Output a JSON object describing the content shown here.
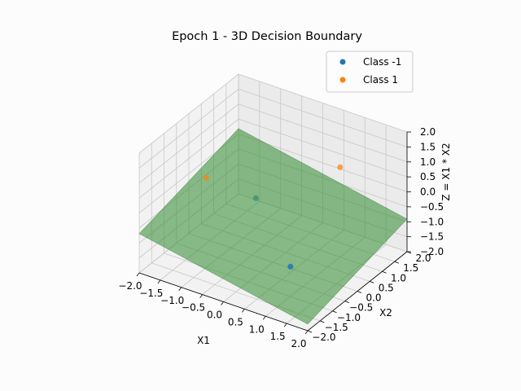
{
  "chart_data": {
    "type": "scatter",
    "title": "Epoch 1 - 3D Decision Boundary",
    "xlabel": "X1",
    "ylabel": "X2",
    "zlabel": "Z = X1 * X2",
    "xlim": [
      -2.0,
      2.0
    ],
    "ylim": [
      -2.0,
      2.0
    ],
    "zlim": [
      -2.0,
      2.0
    ],
    "x_ticks": [
      "−2.0",
      "−1.5",
      "−1.0",
      "−0.5",
      "0.0",
      "0.5",
      "1.0",
      "1.5",
      "2.0"
    ],
    "y_ticks": [
      "−2.0",
      "−1.5",
      "−1.0",
      "−0.5",
      "0.0",
      "0.5",
      "1.0",
      "1.5",
      "2.0"
    ],
    "z_ticks": [
      "−2.0",
      "−1.5",
      "−1.0",
      "−0.5",
      "0.0",
      "0.5",
      "1.0",
      "1.5",
      "2.0"
    ],
    "grid": true,
    "legend_position": "top-right",
    "series": [
      {
        "name": "Class -1",
        "color": "#1f77b4",
        "points": [
          {
            "x": -1,
            "y": 1,
            "z": -1
          },
          {
            "x": 1,
            "y": -1,
            "z": -1
          }
        ]
      },
      {
        "name": "Class 1",
        "color": "#ff7f0e",
        "points": [
          {
            "x": -1,
            "y": -1,
            "z": 1
          },
          {
            "x": 1,
            "y": 1,
            "z": 1
          }
        ]
      }
    ],
    "decision_plane": {
      "color": "#2e8b2e",
      "corners_z": [
        {
          "x": -2,
          "y": -2,
          "z": -0.69
        },
        {
          "x": 2,
          "y": -2,
          "z": -1.78
        },
        {
          "x": 2,
          "y": 2,
          "z": -0.91
        },
        {
          "x": -2,
          "y": 2,
          "z": 0.18
        }
      ]
    }
  }
}
